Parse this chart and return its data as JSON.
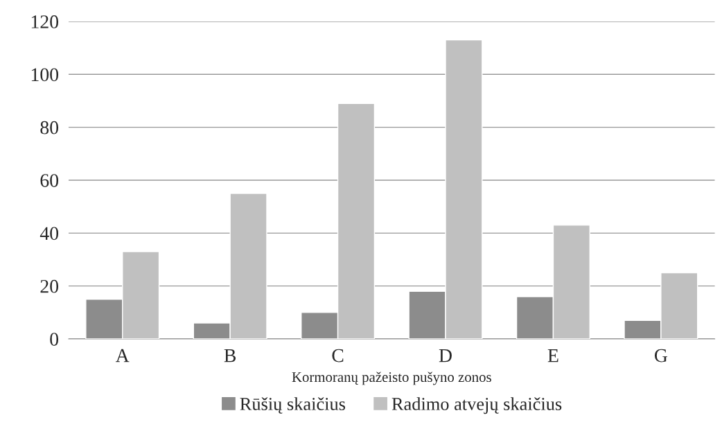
{
  "chart_data": {
    "type": "bar",
    "xlabel": "Kormoranų pažeisto pušyno zonos",
    "categories": [
      "A",
      "B",
      "C",
      "D",
      "E",
      "G"
    ],
    "series": [
      {
        "name": "Rūšių skaičius",
        "color": "#8c8c8c",
        "values": [
          15,
          6,
          10,
          18,
          16,
          7
        ]
      },
      {
        "name": "Radimo atvejų skaičius",
        "color": "#c0c0c0",
        "values": [
          33,
          55,
          89,
          113,
          43,
          25
        ]
      }
    ],
    "ylim": [
      0,
      120
    ],
    "yticks": [
      0,
      20,
      40,
      60,
      80,
      100,
      120
    ],
    "grid": "y",
    "legend": "bottom"
  }
}
